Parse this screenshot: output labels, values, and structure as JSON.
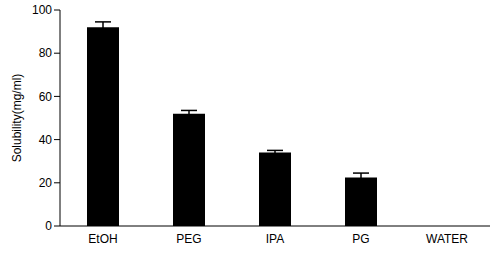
{
  "chart_data": {
    "type": "bar",
    "y_label": "Solubility(mg/ml)",
    "categories": [
      "EtOH",
      "PEG",
      "IPA",
      "PG",
      "WATER"
    ],
    "values": [
      92,
      52,
      34,
      22.5,
      0
    ],
    "errors": [
      2.5,
      1.5,
      1,
      2,
      0
    ],
    "color": "#000000",
    "ylim": [
      0,
      100
    ],
    "yticks": [
      0,
      20,
      40,
      60,
      80,
      100
    ],
    "grid": false
  }
}
